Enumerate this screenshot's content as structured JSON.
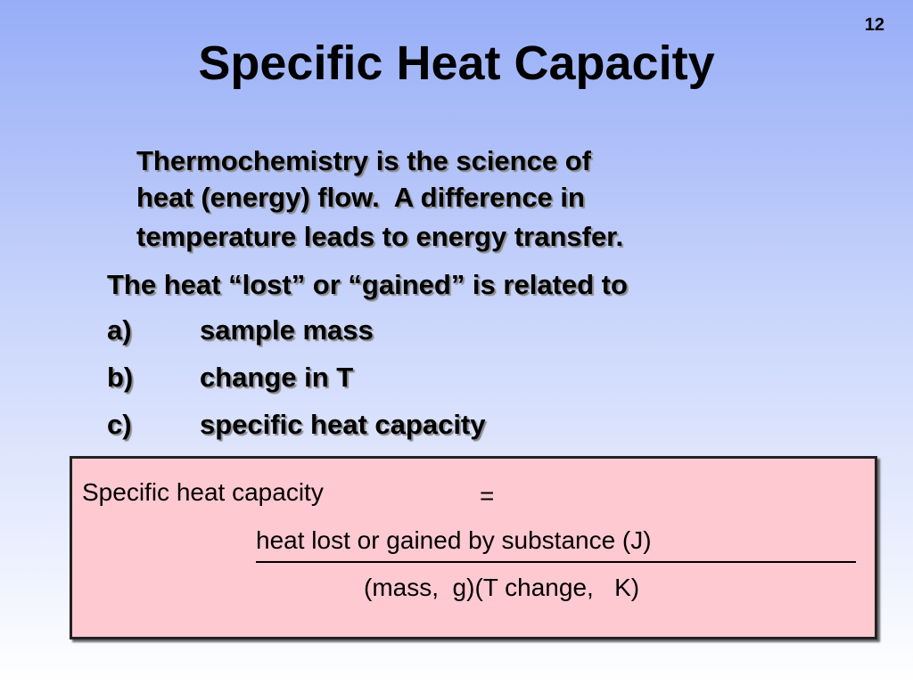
{
  "slide_number": "12",
  "title": "Specific Heat Capacity",
  "intro": {
    "lines": [
      "Thermochemistry is the science of",
      "heat (energy) flow.  A difference in",
      "temperature leads to energy transfer."
    ]
  },
  "lead": "The heat “lost” or “gained” is related to",
  "list": [
    {
      "label": "a)",
      "text": "sample mass"
    },
    {
      "label": "b)",
      "text": "change in T"
    },
    {
      "label": "c)",
      "text": "specific heat capacity"
    }
  ],
  "formula": {
    "term": "Specific heat capacity",
    "equals": "=",
    "numerator": "heat lost or gained by substance (J)",
    "denominator": "(mass,  g)(T change,   K)"
  }
}
